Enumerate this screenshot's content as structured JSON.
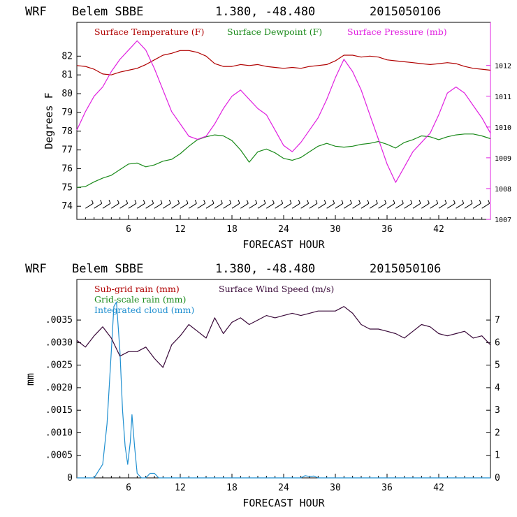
{
  "chart_data": [
    {
      "type": "line",
      "header": {
        "model": "WRF",
        "station": "Belem SBBE",
        "coords": "1.380, -48.480",
        "run": "2015050106"
      },
      "xlabel": "FORECAST HOUR",
      "ylabel": "Degrees F",
      "xlim": [
        0,
        48
      ],
      "x_ticks": [
        "6",
        "12",
        "18",
        "24",
        "30",
        "36",
        "42"
      ],
      "ylim_left": [
        73.3,
        83.8
      ],
      "y_ticks_left": [
        "74",
        "75",
        "76",
        "77",
        "78",
        "79",
        "80",
        "81",
        "82"
      ],
      "ylim_right": [
        1007,
        1013.4
      ],
      "y_ticks_right": [
        "1007",
        "1008",
        "1009",
        "1010",
        "1011",
        "1012"
      ],
      "series": [
        {
          "name": "Surface Temperature (F)",
          "color": "#b00000",
          "axis": "left",
          "x": [
            0,
            1,
            2,
            3,
            4,
            5,
            6,
            7,
            8,
            9,
            10,
            11,
            12,
            13,
            14,
            15,
            16,
            17,
            18,
            19,
            20,
            21,
            22,
            23,
            24,
            25,
            26,
            27,
            28,
            29,
            30,
            31,
            32,
            33,
            34,
            35,
            36,
            37,
            38,
            39,
            40,
            41,
            42,
            43,
            44,
            45,
            46,
            47,
            48
          ],
          "y": [
            81.5,
            81.45,
            81.3,
            81.05,
            81.0,
            81.15,
            81.25,
            81.35,
            81.55,
            81.8,
            82.05,
            82.15,
            82.3,
            82.3,
            82.2,
            82.0,
            81.6,
            81.45,
            81.45,
            81.55,
            81.5,
            81.55,
            81.45,
            81.4,
            81.35,
            81.4,
            81.35,
            81.45,
            81.5,
            81.55,
            81.75,
            82.05,
            82.05,
            81.95,
            82.0,
            81.95,
            81.8,
            81.75,
            81.7,
            81.65,
            81.6,
            81.55,
            81.6,
            81.65,
            81.6,
            81.45,
            81.35,
            81.3,
            81.25
          ]
        },
        {
          "name": "Surface Dewpoint (F)",
          "color": "#1a8a1a",
          "axis": "left",
          "x": [
            0,
            1,
            2,
            3,
            4,
            5,
            6,
            7,
            8,
            9,
            10,
            11,
            12,
            13,
            14,
            15,
            16,
            17,
            18,
            19,
            20,
            21,
            22,
            23,
            24,
            25,
            26,
            27,
            28,
            29,
            30,
            31,
            32,
            33,
            34,
            35,
            36,
            37,
            38,
            39,
            40,
            41,
            42,
            43,
            44,
            45,
            46,
            47,
            48
          ],
          "y": [
            75.0,
            75.05,
            75.3,
            75.5,
            75.65,
            75.95,
            76.25,
            76.3,
            76.1,
            76.2,
            76.4,
            76.5,
            76.8,
            77.2,
            77.55,
            77.7,
            77.8,
            77.75,
            77.5,
            77.0,
            76.35,
            76.9,
            77.05,
            76.85,
            76.55,
            76.45,
            76.6,
            76.9,
            77.2,
            77.35,
            77.2,
            77.15,
            77.2,
            77.3,
            77.35,
            77.45,
            77.3,
            77.1,
            77.4,
            77.55,
            77.75,
            77.7,
            77.55,
            77.7,
            77.8,
            77.85,
            77.85,
            77.75,
            77.6
          ]
        },
        {
          "name": "Surface Pressure (mb)",
          "color": "#e020e0",
          "axis": "right",
          "x": [
            0,
            1,
            2,
            3,
            4,
            5,
            6,
            7,
            8,
            9,
            10,
            11,
            12,
            13,
            14,
            15,
            16,
            17,
            18,
            19,
            20,
            21,
            22,
            23,
            24,
            25,
            26,
            27,
            28,
            29,
            30,
            31,
            32,
            33,
            34,
            35,
            36,
            37,
            38,
            39,
            40,
            41,
            42,
            43,
            44,
            45,
            46,
            47,
            48
          ],
          "y": [
            1009.9,
            1010.5,
            1011.0,
            1011.3,
            1011.8,
            1012.2,
            1012.5,
            1012.8,
            1012.5,
            1011.9,
            1011.2,
            1010.5,
            1010.1,
            1009.7,
            1009.6,
            1009.7,
            1010.1,
            1010.6,
            1011.0,
            1011.2,
            1010.9,
            1010.6,
            1010.4,
            1009.9,
            1009.4,
            1009.2,
            1009.5,
            1009.9,
            1010.3,
            1010.9,
            1011.6,
            1012.2,
            1011.8,
            1011.2,
            1010.4,
            1009.6,
            1008.8,
            1008.2,
            1008.7,
            1009.2,
            1009.5,
            1009.8,
            1010.4,
            1011.1,
            1011.3,
            1011.1,
            1010.7,
            1010.3,
            1009.8
          ]
        }
      ],
      "wind_barbs_hours": [
        1,
        2,
        3,
        4,
        5,
        6,
        7,
        8,
        9,
        10,
        11,
        12,
        13,
        14,
        15,
        16,
        17,
        18,
        19,
        20,
        21,
        22,
        23,
        24,
        25,
        26,
        27,
        28,
        29,
        30,
        31,
        32,
        33,
        34,
        35,
        36,
        37,
        38,
        39,
        40,
        41,
        42,
        43,
        44,
        45,
        46,
        47
      ],
      "wind_barbs_level": 74.0,
      "legend_placement": "top"
    },
    {
      "type": "line",
      "header": {
        "model": "WRF",
        "station": "Belem SBBE",
        "coords": "1.380, -48.480",
        "run": "2015050106"
      },
      "xlabel": "FORECAST HOUR",
      "ylabel": "mm",
      "xlim": [
        0,
        48
      ],
      "x_ticks": [
        "6",
        "12",
        "18",
        "24",
        "30",
        "36",
        "42"
      ],
      "ylim_left": [
        0,
        0.0044
      ],
      "y_ticks_left": [
        "0",
        ".0005",
        ".0010",
        ".0015",
        ".0020",
        ".0025",
        ".0030",
        ".0035"
      ],
      "ylim_right": [
        0,
        8.8
      ],
      "y_ticks_right": [
        "0",
        "1",
        "2",
        "3",
        "4",
        "5",
        "6",
        "7"
      ],
      "series": [
        {
          "name": "Sub-grid rain (mm)",
          "color": "#b00000",
          "axis": "left",
          "x": [],
          "y": []
        },
        {
          "name": "Grid-scale rain (mm)",
          "color": "#1a8a1a",
          "axis": "left",
          "x": [],
          "y": []
        },
        {
          "name": "Integrated cloud (mm)",
          "color": "#1f8fd0",
          "axis": "left",
          "x": [
            0,
            1,
            2,
            3,
            3.5,
            4,
            4.3,
            4.6,
            5,
            5.3,
            5.6,
            5.9,
            6.2,
            6.4,
            6.7,
            7,
            7.5,
            8,
            8.5,
            9,
            9.5,
            10,
            12,
            20,
            26,
            26.5,
            27,
            27.5,
            28,
            48
          ],
          "y": [
            0,
            0,
            0,
            0.0003,
            0.0012,
            0.0028,
            0.0038,
            0.0039,
            0.0028,
            0.0015,
            0.0007,
            0.0003,
            0.0008,
            0.0014,
            0.0007,
            0.0001,
            0,
            0,
            0.0001,
            0.0001,
            0,
            0,
            0,
            0,
            0,
            5e-05,
            3e-05,
            4e-05,
            0,
            0
          ]
        },
        {
          "name": "Surface Wind Speed (m/s)",
          "color": "#3a0a3a",
          "axis": "right",
          "x": [
            0,
            1,
            2,
            3,
            4,
            5,
            6,
            7,
            8,
            9,
            10,
            11,
            12,
            13,
            14,
            15,
            16,
            17,
            18,
            19,
            20,
            21,
            22,
            23,
            24,
            25,
            26,
            27,
            28,
            29,
            30,
            31,
            32,
            33,
            34,
            35,
            36,
            37,
            38,
            39,
            40,
            41,
            42,
            43,
            44,
            45,
            46,
            47,
            48
          ],
          "y": [
            6.1,
            5.8,
            6.3,
            6.7,
            6.2,
            5.4,
            5.6,
            5.6,
            5.8,
            5.3,
            4.9,
            5.9,
            6.3,
            6.8,
            6.5,
            6.2,
            7.1,
            6.4,
            6.9,
            7.1,
            6.8,
            7.0,
            7.2,
            7.1,
            7.2,
            7.3,
            7.2,
            7.3,
            7.4,
            7.4,
            7.4,
            7.6,
            7.3,
            6.8,
            6.6,
            6.6,
            6.5,
            6.4,
            6.2,
            6.5,
            6.8,
            6.7,
            6.4,
            6.3,
            6.4,
            6.5,
            6.2,
            6.3,
            5.9
          ]
        }
      ],
      "legend_placement": "top-left"
    }
  ]
}
